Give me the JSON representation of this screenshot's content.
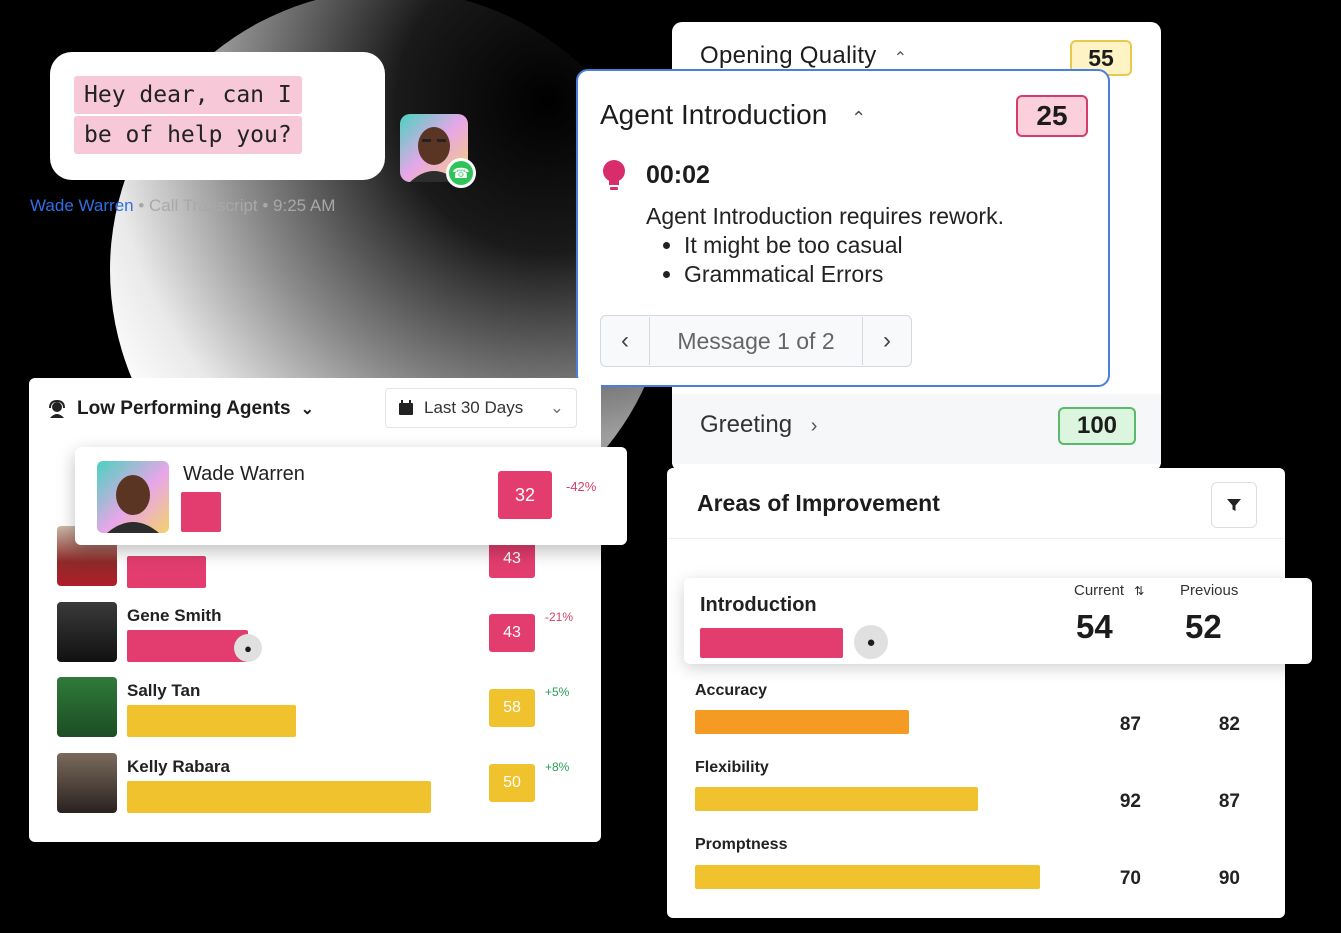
{
  "chat": {
    "line1": "Hey dear, can I",
    "line2": "be of help you?",
    "agent_name": "Wade Warren",
    "meta": " • Call Transcript • 9:25 AM"
  },
  "opening_quality": {
    "title": "Opening Quality",
    "score": "55",
    "greeting_label": "Greeting",
    "greeting_score": "100"
  },
  "agent_intro": {
    "title": "Agent Introduction",
    "score": "25",
    "time": "00:02",
    "message": "Agent Introduction requires rework.",
    "points": [
      "It might be too casual",
      "Grammatical Errors"
    ],
    "pager_text": "Message 1 of 2"
  },
  "low_agents": {
    "title": "Low Performing Agents",
    "date_range": "Last 30 Days",
    "highlight": {
      "name": "Wade Warren",
      "score": "32",
      "delta": "-42%"
    },
    "rows": [
      {
        "name": "",
        "score": "43",
        "delta": "",
        "bar_level": 0.23
      },
      {
        "name": "Gene Smith",
        "score": "43",
        "delta": "-21%",
        "bar_level": 0.35
      },
      {
        "name": "Sally Tan",
        "score": "58",
        "delta": "+5%",
        "bar_level": 0.49
      },
      {
        "name": "Kelly Rabara",
        "score": "50",
        "delta": "+8%",
        "bar_level": 0.88
      }
    ]
  },
  "improvement": {
    "title": "Areas of Improvement",
    "current_label": "Current",
    "previous_label": "Previous",
    "intro": {
      "name": "Introduction",
      "current": "54",
      "previous": "52"
    },
    "metrics": [
      {
        "name": "Accuracy",
        "current": "87",
        "previous": "82",
        "bar_level": 0.62,
        "color": "#f59b23"
      },
      {
        "name": "Flexibility",
        "current": "92",
        "previous": "87",
        "bar_level": 0.82,
        "color": "#f0c22e"
      },
      {
        "name": "Promptness",
        "current": "70",
        "previous": "90",
        "bar_level": 1.0,
        "color": "#f0c22e"
      }
    ]
  },
  "colors": {
    "pink": "#e23d6e",
    "amber": "#f0c22e",
    "orange": "#f59b23",
    "link_blue": "#2f6fe6",
    "focus_blue": "#4a7fe0"
  }
}
